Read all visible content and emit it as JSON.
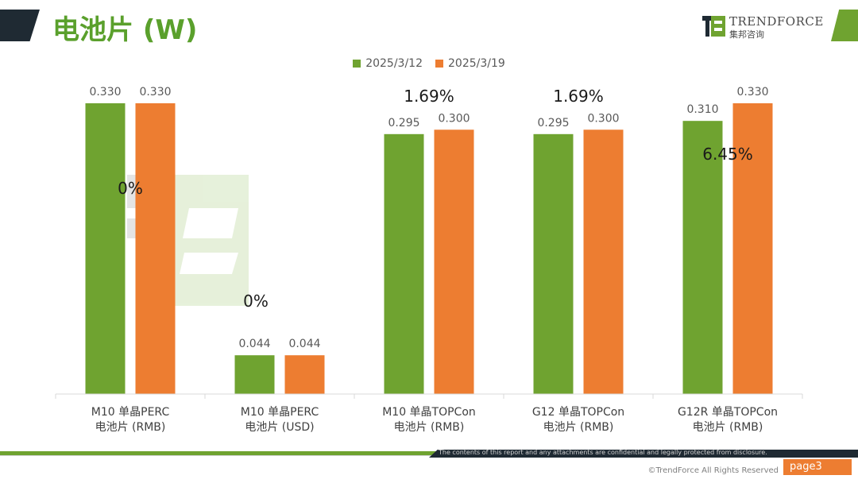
{
  "header": {
    "title": "电池片 (W)",
    "brand_name": "TRENDFORCE",
    "brand_sub": "集邦咨询",
    "brand_colors": {
      "green": "#6fa330",
      "dark": "#1f2a33"
    }
  },
  "chart_data": {
    "type": "bar",
    "categories": [
      [
        "M10 单晶PERC",
        "电池片 (RMB)"
      ],
      [
        "M10 单晶PERC",
        "电池片 (USD)"
      ],
      [
        "M10 单晶TOPCon",
        "电池片 (RMB)"
      ],
      [
        "G12 单晶TOPCon",
        "电池片 (RMB)"
      ],
      [
        "G12R 单晶TOPCon",
        "电池片 (RMB)"
      ]
    ],
    "series": [
      {
        "name": "2025/3/12",
        "color": "#6fa330",
        "values": [
          0.33,
          0.044,
          0.295,
          0.295,
          0.31
        ],
        "labels": [
          "0.330",
          "0.044",
          "0.295",
          "0.295",
          "0.310"
        ]
      },
      {
        "name": "2025/3/19",
        "color": "#ed7d31",
        "values": [
          0.33,
          0.044,
          0.3,
          0.3,
          0.33
        ],
        "labels": [
          "0.330",
          "0.044",
          "0.300",
          "0.300",
          "0.330"
        ]
      }
    ],
    "change_labels": [
      "0%",
      "0%",
      "1.69%",
      "1.69%",
      "6.45%"
    ],
    "ylim": [
      0,
      0.33
    ],
    "grid": false,
    "legend": "top-center"
  },
  "footer": {
    "disclaimer": "The contents of this report and any attachments are confidential and legally protected from disclosure.",
    "copyright": "©TrendForce All Rights Reserved",
    "page": "page3"
  }
}
